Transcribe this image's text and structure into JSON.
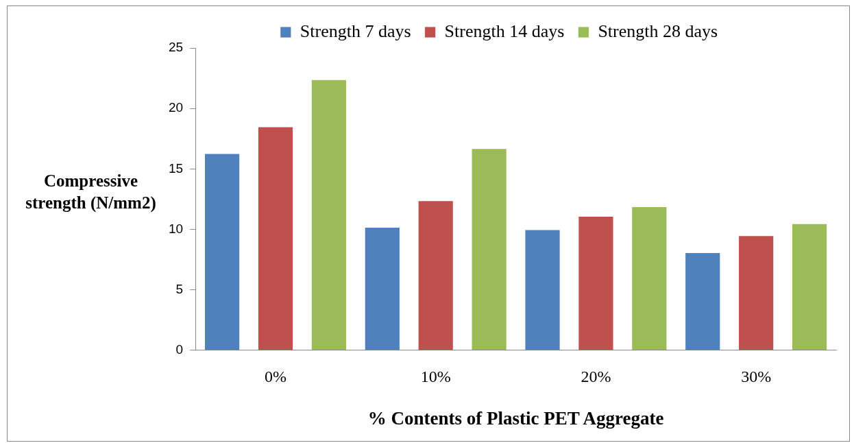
{
  "chart_data": {
    "type": "bar",
    "xlabel": "% Contents of Plastic PET Aggregate",
    "ylabel": "Compressive strength (N/mm2)",
    "categories": [
      "0%",
      "10%",
      "20%",
      "30%"
    ],
    "series": [
      {
        "name": "Strength 7 days",
        "color": "#4f81bd",
        "values": [
          16.3,
          10.2,
          10.0,
          8.1
        ]
      },
      {
        "name": "Strength 14 days",
        "color": "#c0504d",
        "values": [
          18.5,
          12.4,
          11.1,
          9.5
        ]
      },
      {
        "name": "Strength 28 days",
        "color": "#9bbb59",
        "values": [
          22.4,
          16.7,
          11.9,
          10.5
        ]
      }
    ],
    "ylim": [
      0,
      25
    ],
    "yticks": [
      0,
      5,
      10,
      15,
      20,
      25
    ],
    "grid": false,
    "legend": "top"
  }
}
